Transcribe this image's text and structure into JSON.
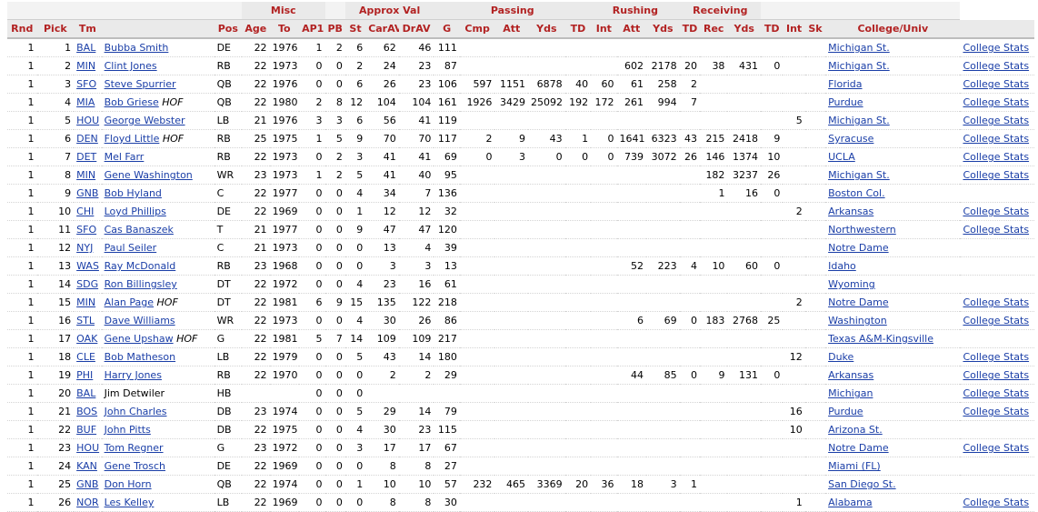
{
  "header": {
    "groups": [
      {
        "label": "",
        "span": 5
      },
      {
        "label": "Misc",
        "span": 3
      },
      {
        "label": "",
        "span": 1
      },
      {
        "label": "Approx Val",
        "span": 3
      },
      {
        "label": "Passing",
        "span": 5
      },
      {
        "label": "Rushing",
        "span": 3
      },
      {
        "label": "Receiving",
        "span": 3
      },
      {
        "label": "",
        "span": 4
      }
    ],
    "columns": [
      "Rnd",
      "Pick",
      "Tm",
      "",
      "Pos",
      "Age",
      "To",
      "AP1",
      "PB",
      "St",
      "CarAV",
      "DrAV",
      "G",
      "Cmp",
      "Att",
      "Yds",
      "TD",
      "Int",
      "Att",
      "Yds",
      "TD",
      "Rec",
      "Yds",
      "TD",
      "Int",
      "Sk",
      "College/Univ",
      ""
    ]
  },
  "rows": [
    {
      "rnd": "1",
      "pick": "1",
      "tm": "BAL",
      "player": "Bubba Smith",
      "hof": "",
      "pos": "DE",
      "age": "22",
      "to": "1976",
      "ap1": "1",
      "pb": "2",
      "st": "6",
      "carav": "62",
      "drav": "46",
      "g": "111",
      "cmp": "",
      "patt": "",
      "pyds": "",
      "ptd": "",
      "pint": "",
      "ratt": "",
      "ryds": "",
      "rtd": "",
      "rec": "",
      "recyds": "",
      "rectd": "",
      "dint": "",
      "sk": "",
      "college": "Michigan St.",
      "stats": "College Stats"
    },
    {
      "rnd": "1",
      "pick": "2",
      "tm": "MIN",
      "player": "Clint Jones",
      "hof": "",
      "pos": "RB",
      "age": "22",
      "to": "1973",
      "ap1": "0",
      "pb": "0",
      "st": "2",
      "carav": "24",
      "drav": "23",
      "g": "87",
      "cmp": "",
      "patt": "",
      "pyds": "",
      "ptd": "",
      "pint": "",
      "ratt": "602",
      "ryds": "2178",
      "rtd": "20",
      "rec": "38",
      "recyds": "431",
      "rectd": "0",
      "dint": "",
      "sk": "",
      "college": "Michigan St.",
      "stats": "College Stats"
    },
    {
      "rnd": "1",
      "pick": "3",
      "tm": "SFO",
      "player": "Steve Spurrier",
      "hof": "",
      "pos": "QB",
      "age": "22",
      "to": "1976",
      "ap1": "0",
      "pb": "0",
      "st": "6",
      "carav": "26",
      "drav": "23",
      "g": "106",
      "cmp": "597",
      "patt": "1151",
      "pyds": "6878",
      "ptd": "40",
      "pint": "60",
      "ratt": "61",
      "ryds": "258",
      "rtd": "2",
      "rec": "",
      "recyds": "",
      "rectd": "",
      "dint": "",
      "sk": "",
      "college": "Florida",
      "stats": "College Stats"
    },
    {
      "rnd": "1",
      "pick": "4",
      "tm": "MIA",
      "player": "Bob Griese",
      "hof": "HOF",
      "pos": "QB",
      "age": "22",
      "to": "1980",
      "ap1": "2",
      "pb": "8",
      "st": "12",
      "carav": "104",
      "drav": "104",
      "g": "161",
      "cmp": "1926",
      "patt": "3429",
      "pyds": "25092",
      "ptd": "192",
      "pint": "172",
      "ratt": "261",
      "ryds": "994",
      "rtd": "7",
      "rec": "",
      "recyds": "",
      "rectd": "",
      "dint": "",
      "sk": "",
      "college": "Purdue",
      "stats": "College Stats"
    },
    {
      "rnd": "1",
      "pick": "5",
      "tm": "HOU",
      "player": "George Webster",
      "hof": "",
      "pos": "LB",
      "age": "21",
      "to": "1976",
      "ap1": "3",
      "pb": "3",
      "st": "6",
      "carav": "56",
      "drav": "41",
      "g": "119",
      "cmp": "",
      "patt": "",
      "pyds": "",
      "ptd": "",
      "pint": "",
      "ratt": "",
      "ryds": "",
      "rtd": "",
      "rec": "",
      "recyds": "",
      "rectd": "",
      "dint": "5",
      "sk": "",
      "college": "Michigan St.",
      "stats": "College Stats"
    },
    {
      "rnd": "1",
      "pick": "6",
      "tm": "DEN",
      "player": "Floyd Little",
      "hof": "HOF",
      "pos": "RB",
      "age": "25",
      "to": "1975",
      "ap1": "1",
      "pb": "5",
      "st": "9",
      "carav": "70",
      "drav": "70",
      "g": "117",
      "cmp": "2",
      "patt": "9",
      "pyds": "43",
      "ptd": "1",
      "pint": "0",
      "ratt": "1641",
      "ryds": "6323",
      "rtd": "43",
      "rec": "215",
      "recyds": "2418",
      "rectd": "9",
      "dint": "",
      "sk": "",
      "college": "Syracuse",
      "stats": "College Stats"
    },
    {
      "rnd": "1",
      "pick": "7",
      "tm": "DET",
      "player": "Mel Farr",
      "hof": "",
      "pos": "RB",
      "age": "22",
      "to": "1973",
      "ap1": "0",
      "pb": "2",
      "st": "3",
      "carav": "41",
      "drav": "41",
      "g": "69",
      "cmp": "0",
      "patt": "3",
      "pyds": "0",
      "ptd": "0",
      "pint": "0",
      "ratt": "739",
      "ryds": "3072",
      "rtd": "26",
      "rec": "146",
      "recyds": "1374",
      "rectd": "10",
      "dint": "",
      "sk": "",
      "college": "UCLA",
      "stats": "College Stats"
    },
    {
      "rnd": "1",
      "pick": "8",
      "tm": "MIN",
      "player": "Gene Washington",
      "hof": "",
      "pos": "WR",
      "age": "23",
      "to": "1973",
      "ap1": "1",
      "pb": "2",
      "st": "5",
      "carav": "41",
      "drav": "40",
      "g": "95",
      "cmp": "",
      "patt": "",
      "pyds": "",
      "ptd": "",
      "pint": "",
      "ratt": "",
      "ryds": "",
      "rtd": "",
      "rec": "182",
      "recyds": "3237",
      "rectd": "26",
      "dint": "",
      "sk": "",
      "college": "Michigan St.",
      "stats": "College Stats"
    },
    {
      "rnd": "1",
      "pick": "9",
      "tm": "GNB",
      "player": "Bob Hyland",
      "hof": "",
      "pos": "C",
      "age": "22",
      "to": "1977",
      "ap1": "0",
      "pb": "0",
      "st": "4",
      "carav": "34",
      "drav": "7",
      "g": "136",
      "cmp": "",
      "patt": "",
      "pyds": "",
      "ptd": "",
      "pint": "",
      "ratt": "",
      "ryds": "",
      "rtd": "",
      "rec": "1",
      "recyds": "16",
      "rectd": "0",
      "dint": "",
      "sk": "",
      "college": "Boston Col.",
      "stats": ""
    },
    {
      "rnd": "1",
      "pick": "10",
      "tm": "CHI",
      "player": "Loyd Phillips",
      "hof": "",
      "pos": "DE",
      "age": "22",
      "to": "1969",
      "ap1": "0",
      "pb": "0",
      "st": "1",
      "carav": "12",
      "drav": "12",
      "g": "32",
      "cmp": "",
      "patt": "",
      "pyds": "",
      "ptd": "",
      "pint": "",
      "ratt": "",
      "ryds": "",
      "rtd": "",
      "rec": "",
      "recyds": "",
      "rectd": "",
      "dint": "2",
      "sk": "",
      "college": "Arkansas",
      "stats": "College Stats"
    },
    {
      "rnd": "1",
      "pick": "11",
      "tm": "SFO",
      "player": "Cas Banaszek",
      "hof": "",
      "pos": "T",
      "age": "21",
      "to": "1977",
      "ap1": "0",
      "pb": "0",
      "st": "9",
      "carav": "47",
      "drav": "47",
      "g": "120",
      "cmp": "",
      "patt": "",
      "pyds": "",
      "ptd": "",
      "pint": "",
      "ratt": "",
      "ryds": "",
      "rtd": "",
      "rec": "",
      "recyds": "",
      "rectd": "",
      "dint": "",
      "sk": "",
      "college": "Northwestern",
      "stats": "College Stats"
    },
    {
      "rnd": "1",
      "pick": "12",
      "tm": "NYJ",
      "player": "Paul Seiler",
      "hof": "",
      "pos": "C",
      "age": "21",
      "to": "1973",
      "ap1": "0",
      "pb": "0",
      "st": "0",
      "carav": "13",
      "drav": "4",
      "g": "39",
      "cmp": "",
      "patt": "",
      "pyds": "",
      "ptd": "",
      "pint": "",
      "ratt": "",
      "ryds": "",
      "rtd": "",
      "rec": "",
      "recyds": "",
      "rectd": "",
      "dint": "",
      "sk": "",
      "college": "Notre Dame",
      "stats": ""
    },
    {
      "rnd": "1",
      "pick": "13",
      "tm": "WAS",
      "player": "Ray McDonald",
      "hof": "",
      "pos": "RB",
      "age": "23",
      "to": "1968",
      "ap1": "0",
      "pb": "0",
      "st": "0",
      "carav": "3",
      "drav": "3",
      "g": "13",
      "cmp": "",
      "patt": "",
      "pyds": "",
      "ptd": "",
      "pint": "",
      "ratt": "52",
      "ryds": "223",
      "rtd": "4",
      "rec": "10",
      "recyds": "60",
      "rectd": "0",
      "dint": "",
      "sk": "",
      "college": "Idaho",
      "stats": ""
    },
    {
      "rnd": "1",
      "pick": "14",
      "tm": "SDG",
      "player": "Ron Billingsley",
      "hof": "",
      "pos": "DT",
      "age": "22",
      "to": "1972",
      "ap1": "0",
      "pb": "0",
      "st": "4",
      "carav": "23",
      "drav": "16",
      "g": "61",
      "cmp": "",
      "patt": "",
      "pyds": "",
      "ptd": "",
      "pint": "",
      "ratt": "",
      "ryds": "",
      "rtd": "",
      "rec": "",
      "recyds": "",
      "rectd": "",
      "dint": "",
      "sk": "",
      "college": "Wyoming",
      "stats": ""
    },
    {
      "rnd": "1",
      "pick": "15",
      "tm": "MIN",
      "player": "Alan Page",
      "hof": "HOF",
      "pos": "DT",
      "age": "22",
      "to": "1981",
      "ap1": "6",
      "pb": "9",
      "st": "15",
      "carav": "135",
      "drav": "122",
      "g": "218",
      "cmp": "",
      "patt": "",
      "pyds": "",
      "ptd": "",
      "pint": "",
      "ratt": "",
      "ryds": "",
      "rtd": "",
      "rec": "",
      "recyds": "",
      "rectd": "",
      "dint": "2",
      "sk": "",
      "college": "Notre Dame",
      "stats": "College Stats"
    },
    {
      "rnd": "1",
      "pick": "16",
      "tm": "STL",
      "player": "Dave Williams",
      "hof": "",
      "pos": "WR",
      "age": "22",
      "to": "1973",
      "ap1": "0",
      "pb": "0",
      "st": "4",
      "carav": "30",
      "drav": "26",
      "g": "86",
      "cmp": "",
      "patt": "",
      "pyds": "",
      "ptd": "",
      "pint": "",
      "ratt": "6",
      "ryds": "69",
      "rtd": "0",
      "rec": "183",
      "recyds": "2768",
      "rectd": "25",
      "dint": "",
      "sk": "",
      "college": "Washington",
      "stats": "College Stats"
    },
    {
      "rnd": "1",
      "pick": "17",
      "tm": "OAK",
      "player": "Gene Upshaw",
      "hof": "HOF",
      "pos": "G",
      "age": "22",
      "to": "1981",
      "ap1": "5",
      "pb": "7",
      "st": "14",
      "carav": "109",
      "drav": "109",
      "g": "217",
      "cmp": "",
      "patt": "",
      "pyds": "",
      "ptd": "",
      "pint": "",
      "ratt": "",
      "ryds": "",
      "rtd": "",
      "rec": "",
      "recyds": "",
      "rectd": "",
      "dint": "",
      "sk": "",
      "college": "Texas A&M-Kingsville",
      "stats": ""
    },
    {
      "rnd": "1",
      "pick": "18",
      "tm": "CLE",
      "player": "Bob Matheson",
      "hof": "",
      "pos": "LB",
      "age": "22",
      "to": "1979",
      "ap1": "0",
      "pb": "0",
      "st": "5",
      "carav": "43",
      "drav": "14",
      "g": "180",
      "cmp": "",
      "patt": "",
      "pyds": "",
      "ptd": "",
      "pint": "",
      "ratt": "",
      "ryds": "",
      "rtd": "",
      "rec": "",
      "recyds": "",
      "rectd": "",
      "dint": "12",
      "sk": "",
      "college": "Duke",
      "stats": "College Stats"
    },
    {
      "rnd": "1",
      "pick": "19",
      "tm": "PHI",
      "player": "Harry Jones",
      "hof": "",
      "pos": "RB",
      "age": "22",
      "to": "1970",
      "ap1": "0",
      "pb": "0",
      "st": "0",
      "carav": "2",
      "drav": "2",
      "g": "29",
      "cmp": "",
      "patt": "",
      "pyds": "",
      "ptd": "",
      "pint": "",
      "ratt": "44",
      "ryds": "85",
      "rtd": "0",
      "rec": "9",
      "recyds": "131",
      "rectd": "0",
      "dint": "",
      "sk": "",
      "college": "Arkansas",
      "stats": "College Stats"
    },
    {
      "rnd": "1",
      "pick": "20",
      "tm": "BAL",
      "player": "Jim Detwiler",
      "hof": "",
      "nolink": true,
      "pos": "HB",
      "age": "",
      "to": "",
      "ap1": "0",
      "pb": "0",
      "st": "0",
      "carav": "",
      "drav": "",
      "g": "",
      "cmp": "",
      "patt": "",
      "pyds": "",
      "ptd": "",
      "pint": "",
      "ratt": "",
      "ryds": "",
      "rtd": "",
      "rec": "",
      "recyds": "",
      "rectd": "",
      "dint": "",
      "sk": "",
      "college": "Michigan",
      "stats": "College Stats"
    },
    {
      "rnd": "1",
      "pick": "21",
      "tm": "BOS",
      "player": "John Charles",
      "hof": "",
      "pos": "DB",
      "age": "23",
      "to": "1974",
      "ap1": "0",
      "pb": "0",
      "st": "5",
      "carav": "29",
      "drav": "14",
      "g": "79",
      "cmp": "",
      "patt": "",
      "pyds": "",
      "ptd": "",
      "pint": "",
      "ratt": "",
      "ryds": "",
      "rtd": "",
      "rec": "",
      "recyds": "",
      "rectd": "",
      "dint": "16",
      "sk": "",
      "college": "Purdue",
      "stats": "College Stats"
    },
    {
      "rnd": "1",
      "pick": "22",
      "tm": "BUF",
      "player": "John Pitts",
      "hof": "",
      "pos": "DB",
      "age": "22",
      "to": "1975",
      "ap1": "0",
      "pb": "0",
      "st": "4",
      "carav": "30",
      "drav": "23",
      "g": "115",
      "cmp": "",
      "patt": "",
      "pyds": "",
      "ptd": "",
      "pint": "",
      "ratt": "",
      "ryds": "",
      "rtd": "",
      "rec": "",
      "recyds": "",
      "rectd": "",
      "dint": "10",
      "sk": "",
      "college": "Arizona St.",
      "stats": ""
    },
    {
      "rnd": "1",
      "pick": "23",
      "tm": "HOU",
      "player": "Tom Regner",
      "hof": "",
      "pos": "G",
      "age": "23",
      "to": "1972",
      "ap1": "0",
      "pb": "0",
      "st": "3",
      "carav": "17",
      "drav": "17",
      "g": "67",
      "cmp": "",
      "patt": "",
      "pyds": "",
      "ptd": "",
      "pint": "",
      "ratt": "",
      "ryds": "",
      "rtd": "",
      "rec": "",
      "recyds": "",
      "rectd": "",
      "dint": "",
      "sk": "",
      "college": "Notre Dame",
      "stats": "College Stats"
    },
    {
      "rnd": "1",
      "pick": "24",
      "tm": "KAN",
      "player": "Gene Trosch",
      "hof": "",
      "pos": "DE",
      "age": "22",
      "to": "1969",
      "ap1": "0",
      "pb": "0",
      "st": "0",
      "carav": "8",
      "drav": "8",
      "g": "27",
      "cmp": "",
      "patt": "",
      "pyds": "",
      "ptd": "",
      "pint": "",
      "ratt": "",
      "ryds": "",
      "rtd": "",
      "rec": "",
      "recyds": "",
      "rectd": "",
      "dint": "",
      "sk": "",
      "college": "Miami (FL)",
      "stats": ""
    },
    {
      "rnd": "1",
      "pick": "25",
      "tm": "GNB",
      "player": "Don Horn",
      "hof": "",
      "pos": "QB",
      "age": "22",
      "to": "1974",
      "ap1": "0",
      "pb": "0",
      "st": "1",
      "carav": "10",
      "drav": "10",
      "g": "57",
      "cmp": "232",
      "patt": "465",
      "pyds": "3369",
      "ptd": "20",
      "pint": "36",
      "ratt": "18",
      "ryds": "3",
      "rtd": "1",
      "rec": "",
      "recyds": "",
      "rectd": "",
      "dint": "",
      "sk": "",
      "college": "San Diego St.",
      "stats": ""
    },
    {
      "rnd": "1",
      "pick": "26",
      "tm": "NOR",
      "player": "Les Kelley",
      "hof": "",
      "pos": "LB",
      "age": "22",
      "to": "1969",
      "ap1": "0",
      "pb": "0",
      "st": "0",
      "carav": "8",
      "drav": "8",
      "g": "30",
      "cmp": "",
      "patt": "",
      "pyds": "",
      "ptd": "",
      "pint": "",
      "ratt": "",
      "ryds": "",
      "rtd": "",
      "rec": "",
      "recyds": "",
      "rectd": "",
      "dint": "1",
      "sk": "",
      "college": "Alabama",
      "stats": "College Stats"
    }
  ]
}
